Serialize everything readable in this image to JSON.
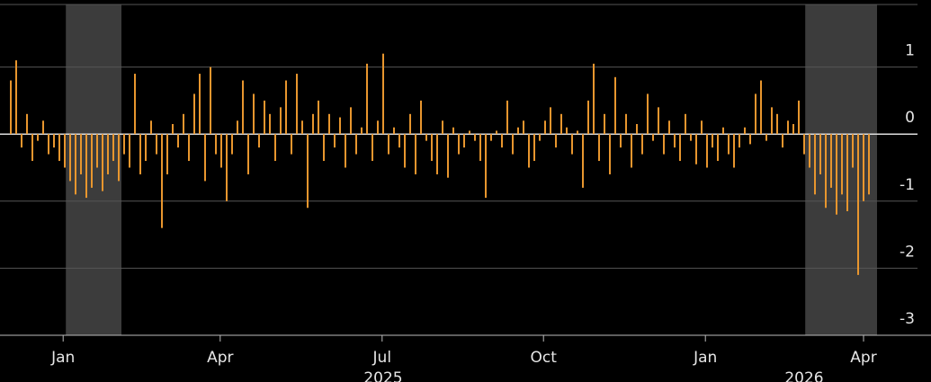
{
  "chart_data": {
    "type": "bar",
    "color": "#e8962e",
    "values": [
      0.8,
      1.1,
      -0.2,
      0.3,
      -0.4,
      -0.1,
      0.2,
      -0.3,
      -0.2,
      -0.4,
      -0.5,
      -0.7,
      -0.9,
      -0.6,
      -0.95,
      -0.8,
      -0.5,
      -0.85,
      -0.6,
      -0.4,
      -0.7,
      -0.3,
      -0.5,
      0.9,
      -0.6,
      -0.4,
      0.2,
      -0.3,
      -1.4,
      -0.6,
      0.15,
      -0.2,
      0.3,
      -0.4,
      0.6,
      0.9,
      -0.7,
      1.0,
      -0.3,
      -0.5,
      -1.0,
      -0.3,
      0.2,
      0.8,
      -0.6,
      0.6,
      -0.2,
      0.5,
      0.3,
      -0.4,
      0.4,
      0.8,
      -0.3,
      0.9,
      0.2,
      -1.1,
      0.3,
      0.5,
      -0.4,
      0.3,
      -0.2,
      0.25,
      -0.5,
      0.4,
      -0.3,
      0.1,
      1.05,
      -0.4,
      0.2,
      1.2,
      -0.3,
      0.1,
      -0.2,
      -0.5,
      0.3,
      -0.6,
      0.5,
      -0.1,
      -0.4,
      -0.6,
      0.2,
      -0.65,
      0.1,
      -0.3,
      -0.2,
      0.05,
      -0.1,
      -0.4,
      -0.95,
      -0.1,
      0.05,
      -0.2,
      0.5,
      -0.3,
      0.1,
      0.2,
      -0.5,
      -0.4,
      -0.1,
      0.2,
      0.4,
      -0.2,
      0.3,
      0.1,
      -0.3,
      0.05,
      -0.8,
      0.5,
      1.05,
      -0.4,
      0.3,
      -0.6,
      0.85,
      -0.2,
      0.3,
      -0.5,
      0.15,
      -0.3,
      0.6,
      -0.1,
      0.4,
      -0.3,
      0.2,
      -0.2,
      -0.4,
      0.3,
      -0.1,
      -0.45,
      0.2,
      -0.5,
      -0.2,
      -0.4,
      0.1,
      -0.3,
      -0.5,
      -0.2,
      0.1,
      -0.15,
      0.6,
      0.8,
      -0.1,
      0.4,
      0.3,
      -0.2,
      0.2,
      0.15,
      0.5,
      -0.3,
      -0.5,
      -0.9,
      -0.6,
      -1.1,
      -0.8,
      -1.2,
      -0.9,
      -1.15,
      -0.5,
      -2.1,
      -1.0,
      -0.9
    ],
    "xlim": [
      -2,
      170.5
    ],
    "xticks": [
      {
        "value": 9.7,
        "label": "Jan"
      },
      {
        "value": 38.8,
        "label": "Apr"
      },
      {
        "value": 68.8,
        "label": "Jul"
      },
      {
        "value": 98.7,
        "label": "Oct"
      },
      {
        "value": 128.7,
        "label": "Jan"
      },
      {
        "value": 158,
        "label": "Apr"
      }
    ],
    "year_labels": [
      {
        "value": 69,
        "label": "2025"
      },
      {
        "value": 147,
        "label": "2026"
      }
    ],
    "shaded_ranges": [
      [
        10.2,
        20.5
      ],
      [
        147.2,
        160.5
      ]
    ],
    "ylim": [
      -3,
      2
    ],
    "yticks": [
      -3,
      -2,
      -1,
      0,
      1
    ],
    "grid": true
  }
}
